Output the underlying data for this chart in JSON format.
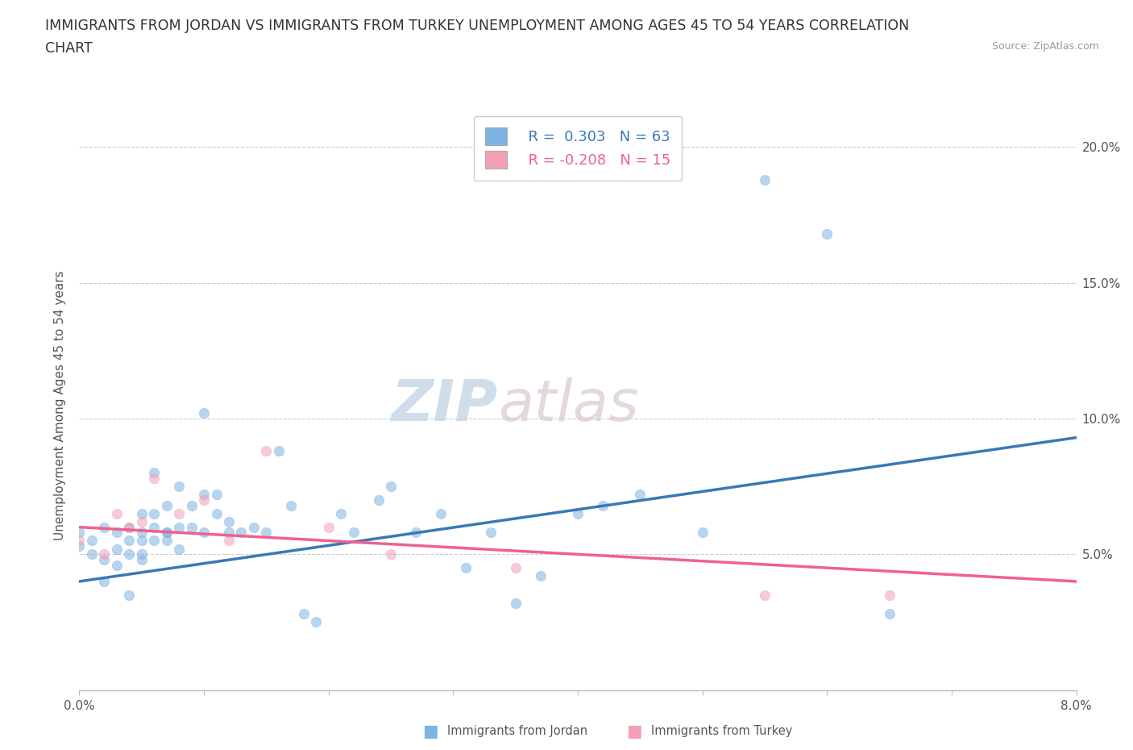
{
  "title_line1": "IMMIGRANTS FROM JORDAN VS IMMIGRANTS FROM TURKEY UNEMPLOYMENT AMONG AGES 45 TO 54 YEARS CORRELATION",
  "title_line2": "CHART",
  "source_text": "Source: ZipAtlas.com",
  "ylabel": "Unemployment Among Ages 45 to 54 years",
  "xlim": [
    0.0,
    0.08
  ],
  "ylim": [
    0.0,
    0.21
  ],
  "xticks": [
    0.0,
    0.01,
    0.02,
    0.03,
    0.04,
    0.05,
    0.06,
    0.07,
    0.08
  ],
  "xticklabels": [
    "0.0%",
    "",
    "",
    "",
    "",
    "",
    "",
    "",
    "8.0%"
  ],
  "ytick_positions": [
    0.05,
    0.1,
    0.15,
    0.2
  ],
  "yticklabels": [
    "5.0%",
    "10.0%",
    "15.0%",
    "20.0%"
  ],
  "jordan_color": "#7eb4e2",
  "turkey_color": "#f4a0b4",
  "jordan_line_color": "#3a78b5",
  "turkey_line_color": "#f06090",
  "watermark_zip": "ZIP",
  "watermark_atlas": "atlas",
  "legend_r_jordan": "R =  0.303",
  "legend_n_jordan": "N = 63",
  "legend_r_turkey": "R = -0.208",
  "legend_n_turkey": "N = 15",
  "jordan_scatter_x": [
    0.0,
    0.0,
    0.001,
    0.001,
    0.002,
    0.002,
    0.002,
    0.003,
    0.003,
    0.003,
    0.004,
    0.004,
    0.004,
    0.004,
    0.005,
    0.005,
    0.005,
    0.005,
    0.005,
    0.006,
    0.006,
    0.006,
    0.006,
    0.007,
    0.007,
    0.007,
    0.007,
    0.008,
    0.008,
    0.008,
    0.009,
    0.009,
    0.01,
    0.01,
    0.01,
    0.011,
    0.011,
    0.012,
    0.012,
    0.013,
    0.014,
    0.015,
    0.016,
    0.017,
    0.018,
    0.019,
    0.021,
    0.022,
    0.024,
    0.025,
    0.027,
    0.029,
    0.031,
    0.033,
    0.035,
    0.037,
    0.04,
    0.042,
    0.045,
    0.05,
    0.055,
    0.06,
    0.065
  ],
  "jordan_scatter_y": [
    0.058,
    0.053,
    0.055,
    0.05,
    0.06,
    0.048,
    0.04,
    0.058,
    0.052,
    0.046,
    0.055,
    0.06,
    0.05,
    0.035,
    0.055,
    0.05,
    0.058,
    0.065,
    0.048,
    0.055,
    0.06,
    0.065,
    0.08,
    0.058,
    0.068,
    0.055,
    0.058,
    0.06,
    0.075,
    0.052,
    0.06,
    0.068,
    0.058,
    0.072,
    0.102,
    0.065,
    0.072,
    0.058,
    0.062,
    0.058,
    0.06,
    0.058,
    0.088,
    0.068,
    0.028,
    0.025,
    0.065,
    0.058,
    0.07,
    0.075,
    0.058,
    0.065,
    0.045,
    0.058,
    0.032,
    0.042,
    0.065,
    0.068,
    0.072,
    0.058,
    0.188,
    0.168,
    0.028
  ],
  "turkey_scatter_x": [
    0.0,
    0.002,
    0.003,
    0.004,
    0.005,
    0.006,
    0.008,
    0.01,
    0.012,
    0.015,
    0.02,
    0.025,
    0.035,
    0.055,
    0.065
  ],
  "turkey_scatter_y": [
    0.055,
    0.05,
    0.065,
    0.06,
    0.062,
    0.078,
    0.065,
    0.07,
    0.055,
    0.088,
    0.06,
    0.05,
    0.045,
    0.035,
    0.035
  ],
  "jordan_trend_x": [
    0.0,
    0.08
  ],
  "jordan_trend_y": [
    0.04,
    0.093
  ],
  "turkey_trend_x": [
    0.0,
    0.08
  ],
  "turkey_trend_y": [
    0.06,
    0.04
  ],
  "background_color": "#ffffff",
  "grid_color": "#cccccc",
  "title_fontsize": 12.5,
  "axis_label_fontsize": 11,
  "tick_fontsize": 11,
  "legend_fontsize": 13,
  "scatter_size": 80,
  "scatter_alpha": 0.55
}
